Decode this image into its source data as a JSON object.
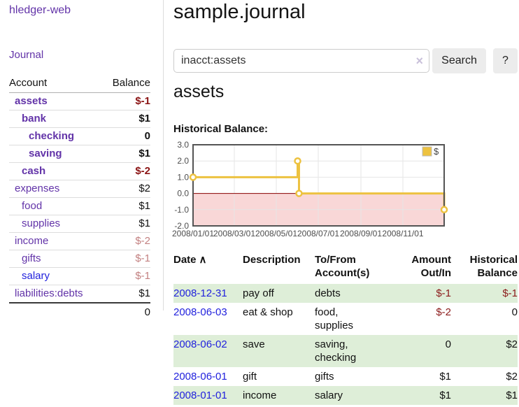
{
  "sidebar": {
    "brand": "hledger-web",
    "journal_link": "Journal",
    "accounts_header": {
      "account": "Account",
      "balance": "Balance"
    },
    "accounts": [
      {
        "name": "assets",
        "balance": "$-1"
      },
      {
        "name": "bank",
        "balance": "$1"
      },
      {
        "name": "checking",
        "balance": "0"
      },
      {
        "name": "saving",
        "balance": "$1"
      },
      {
        "name": "cash",
        "balance": "$-2"
      },
      {
        "name": "expenses",
        "balance": "$2"
      },
      {
        "name": "food",
        "balance": "$1"
      },
      {
        "name": "supplies",
        "balance": "$1"
      },
      {
        "name": "income",
        "balance": "$-2"
      },
      {
        "name": "gifts",
        "balance": "$-1"
      },
      {
        "name": "salary",
        "balance": "$-1"
      },
      {
        "name": "liabilities:debts",
        "balance": "$1"
      }
    ],
    "total": "0"
  },
  "header": {
    "title": "sample.journal"
  },
  "search": {
    "value": "inacct:assets",
    "clear_icon": "×",
    "button": "Search",
    "help_button": "?"
  },
  "account_page": {
    "title": "assets",
    "chart_label": "Historical Balance:"
  },
  "chart_data": {
    "type": "line",
    "step": true,
    "title": "Historical Balance:",
    "legend": "$",
    "legend_position": "top-right",
    "grid": true,
    "ylim": [
      -2,
      3
    ],
    "x_range": [
      "2008-01-01",
      "2008-12-31"
    ],
    "y_ticks": [
      {
        "v": 3,
        "label": "3.0"
      },
      {
        "v": 2,
        "label": "2.0"
      },
      {
        "v": 1,
        "label": "1.0"
      },
      {
        "v": 0,
        "label": "0.0"
      },
      {
        "v": -1,
        "label": "-1.0"
      },
      {
        "v": -2,
        "label": "-2.0"
      }
    ],
    "x_ticks": [
      {
        "date": "2008-01-01",
        "label": "2008/01/01"
      },
      {
        "date": "2008-03-01",
        "label": "2008/03/01"
      },
      {
        "date": "2008-05-01",
        "label": "2008/05/01"
      },
      {
        "date": "2008-07-01",
        "label": "2008/07/01"
      },
      {
        "date": "2008-09-01",
        "label": "2008/09/01"
      },
      {
        "date": "2008-11-01",
        "label": "2008/11/01"
      }
    ],
    "series": [
      {
        "name": "$",
        "color": "#edc240",
        "points": [
          {
            "date": "2008-01-01",
            "value": 1
          },
          {
            "date": "2008-06-01",
            "value": 2
          },
          {
            "date": "2008-06-03",
            "value": 0
          },
          {
            "date": "2008-12-31",
            "value": -1
          }
        ]
      }
    ],
    "negative_region_fill": "#f9d7d7",
    "zero_line_color": "#8b0000",
    "border_color": "#545454",
    "gridline_color": "#e6e6e6"
  },
  "register": {
    "headers": {
      "date": "Date",
      "sort_icon": "∧",
      "description": "Description",
      "tofrom": "To/From Account(s)",
      "amount": "Amount Out/In",
      "balance": "Historical Balance"
    },
    "rows": [
      {
        "date": "2008-12-31",
        "description": "pay off",
        "accounts": "debts",
        "amount": "$-1",
        "balance": "$-1"
      },
      {
        "date": "2008-06-03",
        "description": "eat & shop",
        "accounts": "food, supplies",
        "amount": "$-2",
        "balance": "0"
      },
      {
        "date": "2008-06-02",
        "description": "save",
        "accounts": "saving, checking",
        "amount": "0",
        "balance": "$2"
      },
      {
        "date": "2008-06-01",
        "description": "gift",
        "accounts": "gifts",
        "amount": "$1",
        "balance": "$2"
      },
      {
        "date": "2008-01-01",
        "description": "income",
        "accounts": "salary",
        "amount": "$1",
        "balance": "$1"
      }
    ]
  },
  "colors": {
    "link_purple": "#6233a8",
    "link_blue": "#2222dd",
    "negative_strong": "#8b1414",
    "negative_muted": "#c38181",
    "row_green": "#deeed8",
    "chart_line": "#edc240",
    "chart_negative_fill": "#f9d7d7",
    "chart_zero_line": "#8b0000"
  }
}
